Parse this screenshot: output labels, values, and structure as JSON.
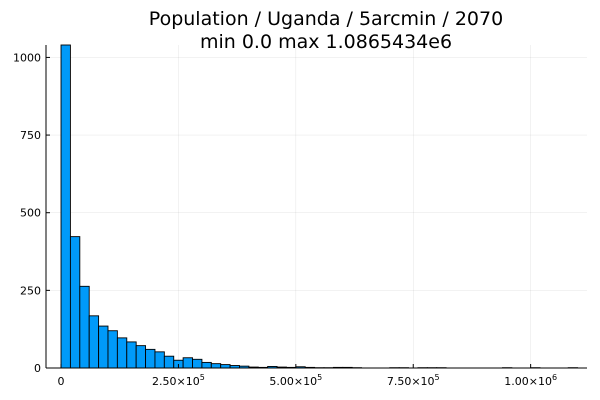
{
  "chart_data": {
    "type": "bar",
    "title": "Population / Uganda / 5arcmin / 2070",
    "subtitle": "min 0.0  max 1.0865434e6",
    "xlabel": "",
    "ylabel": "",
    "bin_width": 20000,
    "xlim": [
      -32000,
      1120000
    ],
    "ylim": [
      0,
      1040
    ],
    "x_ticks": [
      0,
      250000,
      500000,
      750000,
      1000000
    ],
    "x_tick_labels": [
      {
        "base": "0",
        "exp": ""
      },
      {
        "base": "2.50×10",
        "exp": "5"
      },
      {
        "base": "5.00×10",
        "exp": "5"
      },
      {
        "base": "7.50×10",
        "exp": "5"
      },
      {
        "base": "1.00×10",
        "exp": "6"
      }
    ],
    "y_ticks": [
      0,
      250,
      500,
      750,
      1000
    ],
    "y_tick_labels": [
      "0",
      "250",
      "500",
      "750",
      "1000"
    ],
    "bin_starts": [
      0,
      20000,
      40000,
      60000,
      80000,
      100000,
      120000,
      140000,
      160000,
      180000,
      200000,
      220000,
      240000,
      260000,
      280000,
      300000,
      320000,
      340000,
      360000,
      380000,
      400000,
      420000,
      440000,
      460000,
      480000,
      500000,
      520000,
      540000,
      560000,
      580000,
      600000,
      620000,
      640000,
      660000,
      680000,
      700000,
      720000,
      740000,
      760000,
      780000,
      800000,
      820000,
      840000,
      860000,
      880000,
      900000,
      920000,
      940000,
      960000,
      980000,
      1000000,
      1020000,
      1040000,
      1060000,
      1080000
    ],
    "counts": [
      1040,
      423,
      263,
      168,
      135,
      120,
      97,
      84,
      72,
      60,
      52,
      38,
      25,
      33,
      28,
      18,
      14,
      11,
      8,
      6,
      3,
      2,
      5,
      3,
      2,
      4,
      2,
      1,
      1,
      2,
      2,
      1,
      0,
      0,
      0,
      1,
      1,
      0,
      1,
      1,
      1,
      0,
      0,
      0,
      0,
      0,
      0,
      1,
      0,
      0,
      1,
      0,
      0,
      0,
      1
    ],
    "bar_color": "#009AF9",
    "grid": true,
    "legend": "none"
  }
}
